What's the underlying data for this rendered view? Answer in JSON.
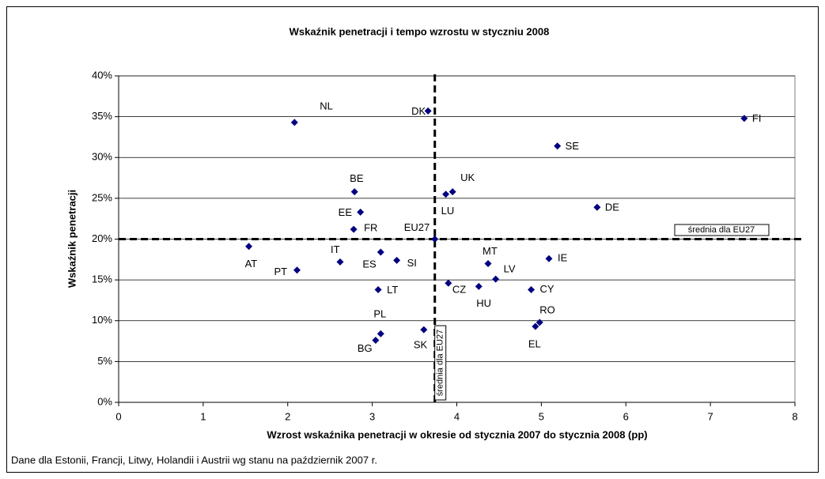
{
  "chart_data": {
    "type": "scatter",
    "title": "Wskaźnik penetracji i tempo wzrostu w styczniu 2008",
    "x_label": "Wzrost wskaźnika penetracji w okresie od stycznia 2007 do stycznia 2008 (pp)",
    "y_label": "Wskaźnik penetracji",
    "footnote": "Dane dla Estonii, Francji, Litwy, Holandii i Austrii wg stanu na październik 2007 r.",
    "xlim": [
      0,
      8
    ],
    "xticks": [
      0,
      1,
      2,
      3,
      4,
      5,
      6,
      7,
      8
    ],
    "ylim": [
      0,
      40
    ],
    "yticks": [
      {
        "value": 0,
        "label": "0%"
      },
      {
        "value": 5,
        "label": "5%"
      },
      {
        "value": 10,
        "label": "10%"
      },
      {
        "value": 15,
        "label": "15%"
      },
      {
        "value": 20,
        "label": "20%"
      },
      {
        "value": 25,
        "label": "25%"
      },
      {
        "value": 30,
        "label": "30%"
      },
      {
        "value": 35,
        "label": "35%"
      },
      {
        "value": 40,
        "label": "40%"
      }
    ],
    "grid": true,
    "series": [
      {
        "color": "#000080",
        "labels": [
          "NL",
          "DK",
          "FI",
          "SE",
          "BE",
          "UK",
          "LU",
          "DE",
          "EE",
          "FR",
          "EU27",
          "AT",
          "IT",
          "ES",
          "SI",
          "PT",
          "MT",
          "IE",
          "LV",
          "CZ",
          "HU",
          "CY",
          "LT",
          "RO",
          "EL",
          "SK",
          "PL",
          "BG"
        ],
        "x": [
          2.08,
          3.66,
          7.4,
          5.19,
          2.79,
          3.95,
          3.87,
          5.66,
          2.86,
          2.78,
          3.74,
          1.54,
          2.62,
          3.1,
          3.29,
          2.11,
          4.37,
          5.09,
          4.46,
          3.9,
          4.26,
          4.88,
          3.07,
          4.98,
          4.93,
          3.61,
          3.1,
          3.04
        ],
        "values": [
          34.3,
          35.7,
          34.8,
          31.4,
          25.8,
          25.8,
          25.5,
          23.9,
          23.3,
          21.2,
          20.0,
          19.1,
          17.2,
          18.4,
          17.4,
          16.2,
          17.0,
          17.6,
          15.1,
          14.6,
          14.2,
          13.8,
          13.8,
          9.8,
          9.3,
          8.9,
          8.4,
          7.6
        ]
      }
    ],
    "average": {
      "label": "średnia dla EU27",
      "x": 3.74,
      "y": 20
    }
  }
}
